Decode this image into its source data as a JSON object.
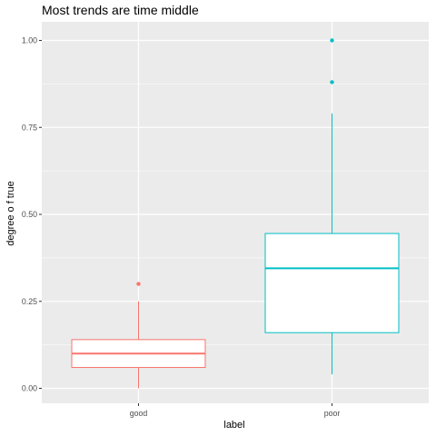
{
  "chart_data": {
    "type": "boxplot",
    "title": "Most trends are time middle",
    "xlabel": "label",
    "ylabel": "degree o f true",
    "ylim": [
      -0.045,
      1.06
    ],
    "yticks": [
      {
        "value": 0.0,
        "label": "0.00"
      },
      {
        "value": 0.25,
        "label": "0.25"
      },
      {
        "value": 0.5,
        "label": "0.50"
      },
      {
        "value": 0.75,
        "label": "0.75"
      },
      {
        "value": 1.0,
        "label": "1.00"
      }
    ],
    "categories": [
      "good",
      "poor"
    ],
    "boxes": [
      {
        "category": "good",
        "color": "#F8766D",
        "whisker_low": 0.0,
        "q1": 0.06,
        "median": 0.1,
        "q3": 0.14,
        "whisker_high": 0.25,
        "outliers": [
          0.3
        ]
      },
      {
        "category": "poor",
        "color": "#00BFC4",
        "whisker_low": 0.04,
        "q1": 0.16,
        "median": 0.345,
        "q3": 0.445,
        "whisker_high": 0.79,
        "outliers": [
          0.88,
          1.0
        ]
      }
    ],
    "panel_background": "#EBEBEB",
    "grid": true,
    "legend": "none"
  }
}
